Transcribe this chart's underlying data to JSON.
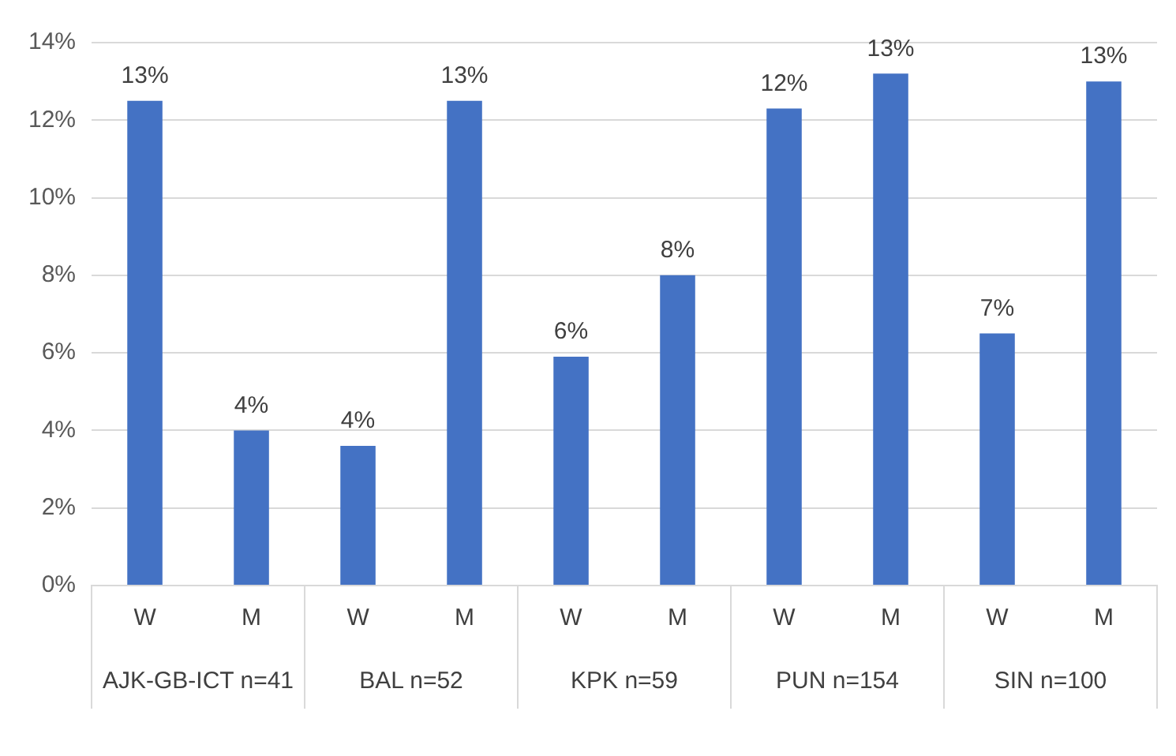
{
  "chart_data": {
    "type": "bar",
    "categories": [
      "W",
      "M",
      "W",
      "M",
      "W",
      "M",
      "W",
      "M",
      "W",
      "M"
    ],
    "values": [
      12.5,
      4.0,
      3.6,
      12.5,
      5.9,
      8.0,
      12.3,
      13.2,
      6.5,
      13.0
    ],
    "value_labels": [
      "13%",
      "4%",
      "4%",
      "13%",
      "6%",
      "8%",
      "12%",
      "13%",
      "7%",
      "13%"
    ],
    "color": "#4472c4",
    "ylim": [
      0,
      14
    ],
    "yticks": [
      {
        "value": 0,
        "label": "0%"
      },
      {
        "value": 2,
        "label": "2%"
      },
      {
        "value": 4,
        "label": "4%"
      },
      {
        "value": 6,
        "label": "6%"
      },
      {
        "value": 8,
        "label": "8%"
      },
      {
        "value": 10,
        "label": "10%"
      },
      {
        "value": 12,
        "label": "12%"
      },
      {
        "value": 14,
        "label": "14%"
      }
    ],
    "annotations": [
      "AJK-GB-ICT n=41",
      "BAL n=52",
      "KPK n=59",
      "PUN n=154",
      "SIN n=100"
    ],
    "grid": "y"
  }
}
